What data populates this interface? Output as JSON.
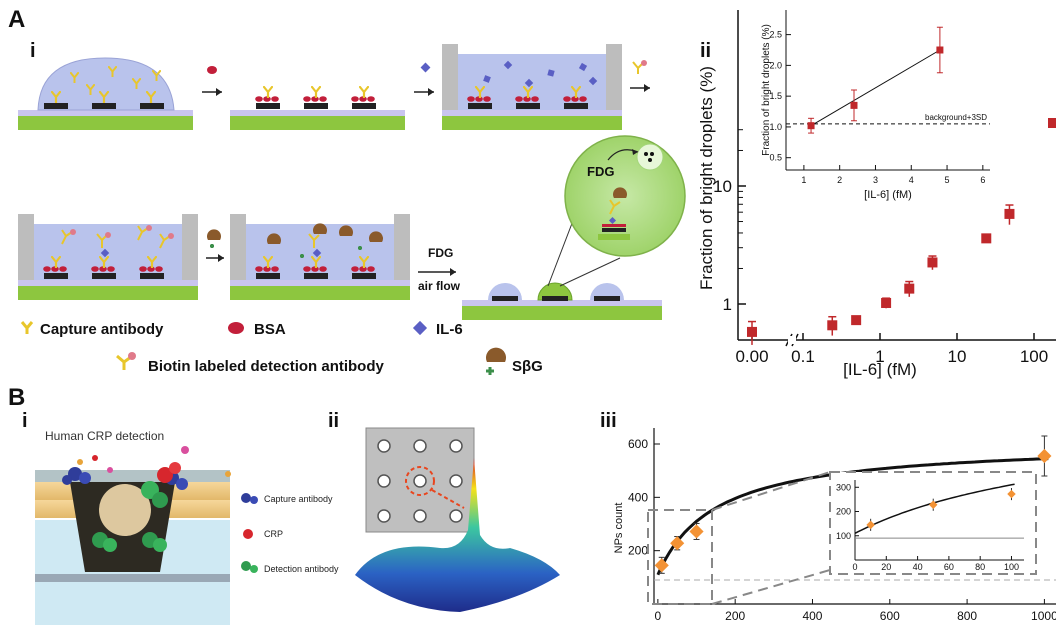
{
  "labels": {
    "panel_a": "A",
    "panel_b": "B",
    "a_i": "i",
    "a_ii": "ii",
    "b_i": "i",
    "b_ii": "ii",
    "b_iii": "iii"
  },
  "schematic": {
    "fdg_bubble": "FDG",
    "fdg_step": "FDG",
    "airflow_step": "air flow",
    "legend": {
      "capture_antibody": "Capture antibody",
      "bsa": "BSA",
      "il6": "IL-6",
      "detection_antibody": "Biotin labeled detection antibody",
      "sbg": "SβG"
    }
  },
  "crp_panel": {
    "title": "Human CRP detection",
    "legend": {
      "capture": "Capture antibody",
      "crp": "CRP",
      "detection": "Detection antibody"
    }
  },
  "colors": {
    "substrate_green": "#8dc63f",
    "liquid_blue": "#b9c3ec",
    "marker_red": "#c0282b",
    "marker_orange": "#f39234",
    "antibody_yellow": "#e8c62b",
    "bsa_red": "#c21f3a",
    "il6_purple": "#5a5fc4"
  },
  "chart_data": [
    {
      "id": "A-ii-main",
      "type": "scatter",
      "ylabel": "Fraction of bright droplets (%)",
      "xlabel": "[IL-6] (fM)",
      "x_scale": "log (with broken axis at 0.00)",
      "y_scale": "log",
      "x_ticks": [
        "0.00",
        "0.1",
        "1",
        "10",
        "100"
      ],
      "y_ticks": [
        "1",
        "10"
      ],
      "points": [
        {
          "x": 0.0,
          "y": 0.58,
          "err": 0.13
        },
        {
          "x": 0.24,
          "y": 0.66,
          "err": 0.12
        },
        {
          "x": 0.49,
          "y": 0.73,
          "err": 0.05
        },
        {
          "x": 1.2,
          "y": 1.02,
          "err": 0.1
        },
        {
          "x": 2.4,
          "y": 1.35,
          "err": 0.2
        },
        {
          "x": 4.8,
          "y": 2.25,
          "err": 0.3
        },
        {
          "x": 24,
          "y": 3.6,
          "err": 0.1
        },
        {
          "x": 48,
          "y": 5.8,
          "err": 1.1
        }
      ]
    },
    {
      "id": "A-ii-inset",
      "type": "scatter",
      "ylabel": "Fraction of bright droplets (%)",
      "xlabel": "[IL-6] (fM)",
      "annotation": "background+3SD",
      "x_ticks": [
        "1",
        "2",
        "3",
        "4",
        "5",
        "6"
      ],
      "y_ticks": [
        "0.5",
        "1.0",
        "1.5",
        "2.0",
        "2.5"
      ],
      "xlim": [
        0.5,
        6.2
      ],
      "ylim": [
        0.3,
        2.9
      ],
      "background_line": 1.05,
      "fit_line": {
        "x": [
          1.2,
          4.8
        ],
        "y": [
          1.02,
          2.25
        ]
      },
      "points": [
        {
          "x": 1.2,
          "y": 1.02,
          "err": 0.12
        },
        {
          "x": 2.4,
          "y": 1.35,
          "err": 0.25
        },
        {
          "x": 4.8,
          "y": 2.25,
          "err": 0.37
        }
      ]
    },
    {
      "id": "B-iii-main",
      "type": "scatter",
      "ylabel": "NPs count",
      "x_ticks": [
        "0",
        "200",
        "400",
        "600",
        "800",
        "1000"
      ],
      "y_ticks": [
        "200",
        "400",
        "600"
      ],
      "xlim": [
        -10,
        1030
      ],
      "ylim": [
        0,
        660
      ],
      "baseline": 90,
      "points": [
        {
          "x": 10,
          "y": 145,
          "err": 30
        },
        {
          "x": 50,
          "y": 228,
          "err": 25
        },
        {
          "x": 100,
          "y": 272,
          "err": 30
        },
        {
          "x": 1000,
          "y": 555,
          "err": 75
        }
      ]
    },
    {
      "id": "B-iii-inset",
      "type": "scatter",
      "x_ticks": [
        "0",
        "20",
        "40",
        "60",
        "80",
        "100"
      ],
      "y_ticks": [
        "100",
        "200",
        "300"
      ],
      "xlim": [
        0,
        108
      ],
      "ylim": [
        0,
        330
      ],
      "baseline": 90,
      "points": [
        {
          "x": 10,
          "y": 145,
          "err": 25
        },
        {
          "x": 50,
          "y": 228,
          "err": 25
        },
        {
          "x": 100,
          "y": 272,
          "err": 25
        }
      ]
    }
  ]
}
